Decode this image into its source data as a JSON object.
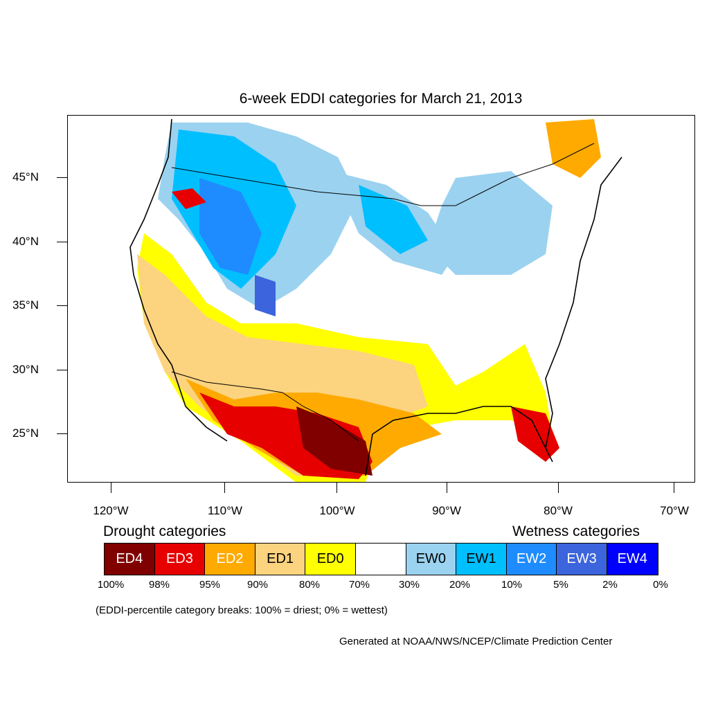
{
  "title": "6-week EDDI categories for March 21, 2013",
  "axes": {
    "lat_labels": [
      "45°N",
      "40°N",
      "35°N",
      "30°N",
      "25°N"
    ],
    "lon_labels": [
      "120°W",
      "110°W",
      "100°W",
      "90°W",
      "80°W",
      "70°W"
    ]
  },
  "legend": {
    "drought_heading": "Drought categories",
    "wetness_heading": "Wetness categories",
    "categories": [
      {
        "label": "ED4",
        "color": "#800000",
        "text_color": "#ffffff"
      },
      {
        "label": "ED3",
        "color": "#e60000",
        "text_color": "#ffffff"
      },
      {
        "label": "ED2",
        "color": "#ffaa00",
        "text_color": "#ffffff"
      },
      {
        "label": "ED1",
        "color": "#fcd37f",
        "text_color": "#000000"
      },
      {
        "label": "ED0",
        "color": "#ffff00",
        "text_color": "#000000"
      },
      {
        "label": "",
        "color": "#ffffff",
        "text_color": "#000000"
      },
      {
        "label": "EW0",
        "color": "#9bd2f0",
        "text_color": "#000000"
      },
      {
        "label": "EW1",
        "color": "#00bfff",
        "text_color": "#000000"
      },
      {
        "label": "EW2",
        "color": "#1e8cff",
        "text_color": "#ffffff"
      },
      {
        "label": "EW3",
        "color": "#3c64dc",
        "text_color": "#ffffff"
      },
      {
        "label": "EW4",
        "color": "#0000ff",
        "text_color": "#ffffff"
      }
    ],
    "breaks": [
      "100%",
      "98%",
      "95%",
      "90%",
      "80%",
      "70%",
      "30%",
      "20%",
      "10%",
      "5%",
      "2%",
      "0%"
    ]
  },
  "note": "(EDDI-percentile category breaks: 100% = driest; 0% = wettest)",
  "credit": "Generated at NOAA/NWS/NCEP/Climate Prediction Center"
}
